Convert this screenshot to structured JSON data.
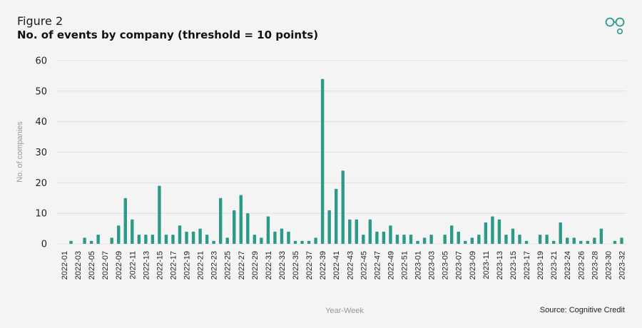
{
  "header": {
    "figure_label": "Figure 2",
    "title": "No. of events by company (threshold = 10 points)"
  },
  "colors": {
    "bar": "#2c9a88",
    "grid": "#dcdcdc",
    "text": "#222222",
    "axis_label": "#999999",
    "logo": "#2c9a88"
  },
  "logo_icon": "cognitive-credit-logo-icon",
  "source": "Source: Cognitive Credit",
  "chart_data": {
    "type": "bar",
    "xlabel": "Year-Week",
    "ylabel": "No. of companies",
    "ylim": [
      0,
      60
    ],
    "yticks": [
      0,
      10,
      20,
      30,
      40,
      50,
      60
    ],
    "grid": true,
    "legend": "none",
    "x_tick_labels": [
      "2022-01",
      "2022-03",
      "2022-05",
      "2022-07",
      "2022-09",
      "2022-11",
      "2022-13",
      "2022-15",
      "2022-17",
      "2022-19",
      "2022-21",
      "2022-23",
      "2022-25",
      "2022-27",
      "2022-29",
      "2022-31",
      "2022-33",
      "2022-35",
      "2022-37",
      "2022-39",
      "2022-41",
      "2022-43",
      "2022-45",
      "2022-47",
      "2022-49",
      "2022-51",
      "2023-01",
      "2023-03",
      "2023-05",
      "2023-07",
      "2023-09",
      "2023-11",
      "2023-13",
      "2023-15",
      "2023-17",
      "2023-19",
      "2023-21",
      "2023-24",
      "2023-26",
      "2023-28",
      "2023-30",
      "2023-32"
    ],
    "values": [
      0,
      1,
      0,
      2,
      1,
      3,
      0,
      2,
      6,
      15,
      8,
      3,
      3,
      3,
      19,
      3,
      3,
      6,
      4,
      4,
      5,
      3,
      1,
      15,
      2,
      11,
      16,
      10,
      3,
      2,
      9,
      4,
      5,
      4,
      1,
      1,
      1,
      2,
      54,
      11,
      18,
      24,
      8,
      8,
      3,
      8,
      4,
      4,
      6,
      3,
      3,
      3,
      1,
      2,
      3,
      0,
      3,
      6,
      4,
      1,
      2,
      3,
      7,
      9,
      8,
      3,
      5,
      3,
      1,
      0,
      3,
      3,
      1,
      7,
      2,
      2,
      1,
      1,
      2,
      5,
      0,
      1,
      2
    ]
  }
}
